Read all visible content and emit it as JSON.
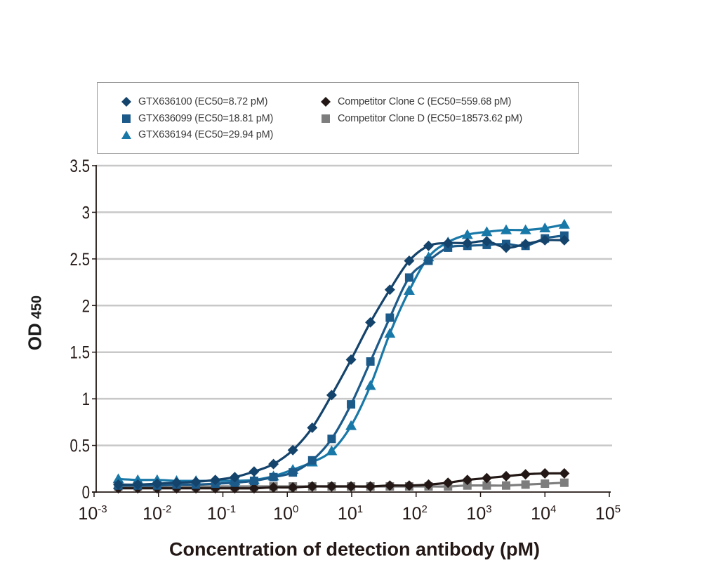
{
  "chart_data": {
    "type": "line",
    "title": "",
    "xlabel": "Concentration of detection antibody (pM)",
    "ylabel": "OD",
    "ylabel_sub": "450",
    "xscale": "log",
    "xlim": [
      0.001,
      100000
    ],
    "ylim": [
      0,
      3.5
    ],
    "grid": "horizontal",
    "legend_position": "top",
    "yticks": [
      "0",
      "0.5",
      "1",
      "1.5",
      "2",
      "2.5",
      "3",
      "3.5"
    ],
    "ytick_values": [
      0,
      0.5,
      1,
      1.5,
      2,
      2.5,
      3,
      3.5
    ],
    "xticks": [
      {
        "base": "10",
        "exp": "-3",
        "value": 0.001
      },
      {
        "base": "10",
        "exp": "-2",
        "value": 0.01
      },
      {
        "base": "10",
        "exp": "-1",
        "value": 0.1
      },
      {
        "base": "10",
        "exp": "0",
        "value": 1
      },
      {
        "base": "10",
        "exp": "1",
        "value": 10
      },
      {
        "base": "10",
        "exp": "2",
        "value": 100
      },
      {
        "base": "10",
        "exp": "3",
        "value": 1000
      },
      {
        "base": "10",
        "exp": "4",
        "value": 10000
      },
      {
        "base": "10",
        "exp": "5",
        "value": 100000
      }
    ],
    "x": [
      0.00238,
      0.00477,
      0.00954,
      0.0191,
      0.0382,
      0.0763,
      0.153,
      0.305,
      0.61,
      1.22,
      2.44,
      4.88,
      9.77,
      19.5,
      39.1,
      78.1,
      156,
      313,
      625,
      1250,
      2500,
      5000,
      10000,
      20000
    ],
    "series": [
      {
        "name": "GTX636100 (EC50=8.72 pM)",
        "marker": "diamond",
        "color": "#14436b",
        "values": [
          0.08,
          0.08,
          0.09,
          0.1,
          0.11,
          0.13,
          0.16,
          0.22,
          0.3,
          0.45,
          0.69,
          1.04,
          1.42,
          1.82,
          2.17,
          2.48,
          2.64,
          2.67,
          2.67,
          2.69,
          2.62,
          2.66,
          2.7,
          2.7
        ]
      },
      {
        "name": "GTX636099 (EC50=18.81 pM)",
        "marker": "square",
        "color": "#1c5a8a",
        "values": [
          0.07,
          0.07,
          0.07,
          0.08,
          0.08,
          0.09,
          0.1,
          0.12,
          0.16,
          0.21,
          0.34,
          0.57,
          0.94,
          1.4,
          1.87,
          2.3,
          2.48,
          2.62,
          2.64,
          2.65,
          2.66,
          2.64,
          2.72,
          2.75
        ]
      },
      {
        "name": "GTX636194 (EC50=29.94 pM)",
        "marker": "triangle",
        "color": "#1878a8",
        "values": [
          0.14,
          0.13,
          0.13,
          0.12,
          0.12,
          0.12,
          0.12,
          0.13,
          0.17,
          0.24,
          0.32,
          0.44,
          0.71,
          1.14,
          1.7,
          2.16,
          2.52,
          2.68,
          2.76,
          2.79,
          2.81,
          2.81,
          2.83,
          2.87
        ]
      },
      {
        "name": "Competitor Clone C (EC50=559.68 pM)",
        "marker": "diamond",
        "color": "#231815",
        "values": [
          0.04,
          0.04,
          0.04,
          0.04,
          0.04,
          0.04,
          0.04,
          0.04,
          0.05,
          0.05,
          0.06,
          0.06,
          0.06,
          0.06,
          0.07,
          0.07,
          0.08,
          0.1,
          0.13,
          0.15,
          0.17,
          0.19,
          0.2,
          0.2
        ]
      },
      {
        "name": "Competitor Clone D (EC50=18573.62 pM)",
        "marker": "square",
        "color": "#7d7d7d",
        "values": [
          0.06,
          0.06,
          0.06,
          0.06,
          0.06,
          0.06,
          0.06,
          0.06,
          0.06,
          0.06,
          0.06,
          0.06,
          0.06,
          0.06,
          0.06,
          0.06,
          0.06,
          0.06,
          0.07,
          0.07,
          0.07,
          0.08,
          0.09,
          0.1
        ]
      }
    ]
  },
  "legend": {
    "items": [
      {
        "label": "GTX636100 (EC50=8.72 pM)",
        "marker": "diamond",
        "color": "#14436b"
      },
      {
        "label": "GTX636099 (EC50=18.81 pM)",
        "marker": "square",
        "color": "#1c5a8a"
      },
      {
        "label": "GTX636194 (EC50=29.94 pM)",
        "marker": "triangle",
        "color": "#1878a8"
      },
      {
        "label": "Competitor Clone C (EC50=559.68 pM)",
        "marker": "diamond",
        "color": "#231815"
      },
      {
        "label": "Competitor Clone D (EC50=18573.62 pM)",
        "marker": "square",
        "color": "#7d7d7d"
      }
    ]
  }
}
